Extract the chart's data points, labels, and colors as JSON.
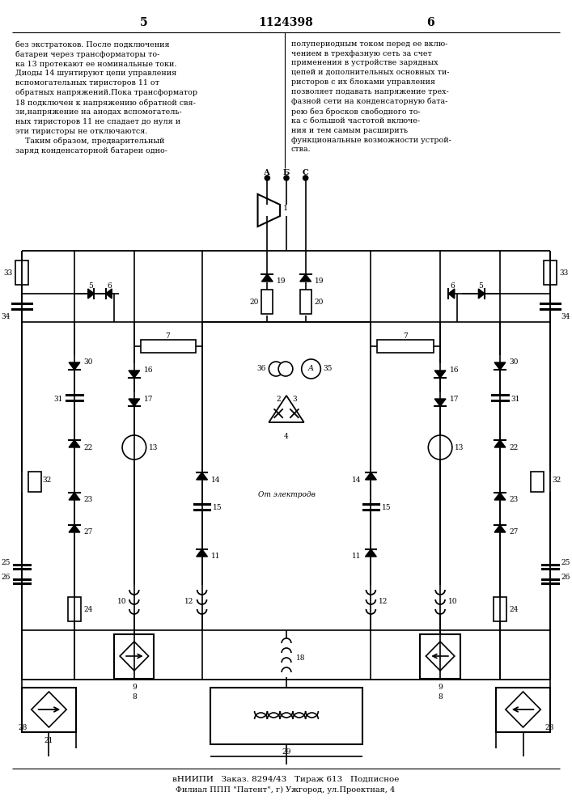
{
  "page_number_left": "5",
  "page_number_center": "1124398",
  "page_number_right": "6",
  "text_left": "без экстратоков. После подключения\nбатареи через трансформаторы то-\nка 13 протекают ее номинальные токи.\nДиоды 14 шунтируют цепи управления\nвспомогательных тиристоров 11 от\nобратных напряжений.Пока трансформатор\n18 подключен к напряжению обратной свя-\nзи,напряжение на анодах вспомогатель-\nных тиристоров 11 не спадает до нуля и\nэти тиристоры не отключаются.\n    Таким образом, предварительный\nзаряд конденсаторной батареи одно-",
  "text_right": "полупериодным током перед ее вклю-\nчением в трехфазную сеть за счет\nприменения в устройстве зарядных\nцепей и дополнительных основных ти-\nристоров с их блоками управления\nпозволяет подавать напряжение трех-\nфазной сети на конденсаторную бата-\nрею без бросков свободного то-\nка с большой частотой включе-\nния и тем самым расширить\nфункциональные возможности устрой-\nства.",
  "footer_line1": "вНИИПИ   Заказ. 8294/43   Тираж 613   Подписное",
  "footer_line2": "Филиал ППП \"Патент\", г) Ужгород, ул.Проектная, 4",
  "bg_color": "#ffffff",
  "text_color": "#000000"
}
